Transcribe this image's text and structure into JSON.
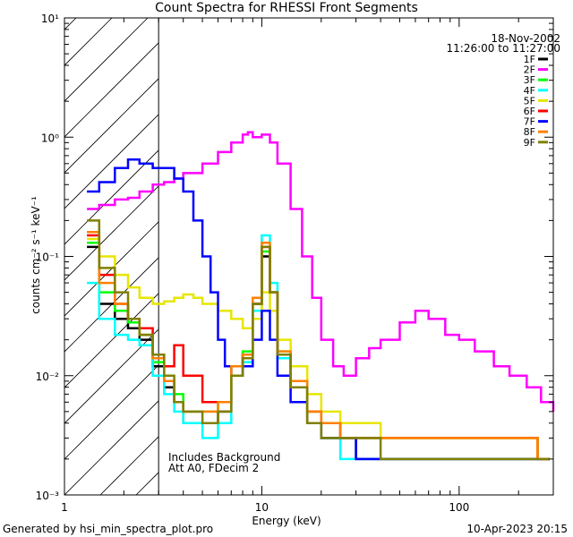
{
  "chart_data": {
    "type": "line",
    "title": "Count Spectra for RHESSI Front Segments",
    "xlabel": "Energy (keV)",
    "ylabel": "counts cm⁻² s⁻¹ keV⁻¹",
    "x_scale": "log",
    "y_scale": "log",
    "xlim": [
      1,
      300
    ],
    "ylim": [
      0.001,
      10
    ],
    "x_ticks": [
      "1",
      "10",
      "100"
    ],
    "y_ticks": [
      "10⁻³",
      "10⁻²",
      "10⁻¹",
      "10⁰",
      "10¹"
    ],
    "annotations": [
      "18-Nov-2002",
      "11:26:00 to 11:27:00",
      "Includes Background",
      "Att A0, FDecim 2"
    ],
    "excluded_region_kev": [
      1,
      3
    ],
    "legend_position": "top-right",
    "series": [
      {
        "name": "1F",
        "color": "#000000",
        "x": [
          1.3,
          1.5,
          1.8,
          2.1,
          2.4,
          2.8,
          3.2,
          3.6,
          4.0,
          5.0,
          6.0,
          7.0,
          8.0,
          9.0,
          10.0,
          11.0,
          12.0,
          14.0,
          17.0,
          20.0,
          25.0,
          30.0,
          40.0,
          60.0,
          100.0,
          150.0,
          250.0
        ],
        "y": [
          0.12,
          0.04,
          0.03,
          0.025,
          0.02,
          0.012,
          0.008,
          0.006,
          0.004,
          0.004,
          0.005,
          0.012,
          0.015,
          0.04,
          0.1,
          0.05,
          0.015,
          0.008,
          0.004,
          0.003,
          0.003,
          0.002,
          0.002,
          0.002,
          0.002,
          0.002,
          0.002
        ]
      },
      {
        "name": "2F",
        "color": "#ff00ff",
        "x": [
          1.3,
          1.5,
          1.8,
          2.1,
          2.4,
          2.8,
          3.2,
          3.6,
          4.0,
          5.0,
          6.0,
          7.0,
          8.0,
          8.5,
          9.0,
          10.0,
          11.0,
          12.0,
          14.0,
          16.0,
          18.0,
          20.0,
          23.0,
          26.0,
          30.0,
          35.0,
          40.0,
          50.0,
          60.0,
          70.0,
          85.0,
          100.0,
          120.0,
          150.0,
          180.0,
          220.0,
          260.0,
          300.0
        ],
        "y": [
          0.25,
          0.27,
          0.3,
          0.31,
          0.35,
          0.4,
          0.42,
          0.45,
          0.5,
          0.6,
          0.75,
          0.9,
          1.05,
          1.1,
          1.0,
          1.05,
          0.9,
          0.6,
          0.25,
          0.1,
          0.045,
          0.02,
          0.012,
          0.01,
          0.014,
          0.017,
          0.02,
          0.028,
          0.035,
          0.03,
          0.022,
          0.02,
          0.016,
          0.012,
          0.01,
          0.008,
          0.006,
          0.005
        ]
      },
      {
        "name": "3F",
        "color": "#00ff00",
        "x": [
          1.3,
          1.5,
          1.8,
          2.1,
          2.4,
          2.8,
          3.2,
          3.6,
          4.0,
          5.0,
          6.0,
          7.0,
          8.0,
          9.0,
          10.0,
          11.0,
          12.0,
          14.0,
          17.0,
          20.0,
          25.0,
          30.0,
          40.0,
          60.0,
          100.0,
          150.0,
          250.0
        ],
        "y": [
          0.13,
          0.05,
          0.035,
          0.028,
          0.022,
          0.013,
          0.009,
          0.007,
          0.005,
          0.005,
          0.006,
          0.012,
          0.016,
          0.04,
          0.11,
          0.05,
          0.016,
          0.009,
          0.005,
          0.004,
          0.003,
          0.003,
          0.003,
          0.003,
          0.003,
          0.003,
          0.002
        ]
      },
      {
        "name": "4F",
        "color": "#00ffff",
        "x": [
          1.3,
          1.5,
          1.8,
          2.1,
          2.4,
          2.8,
          3.2,
          3.6,
          4.0,
          5.0,
          6.0,
          7.0,
          8.0,
          9.0,
          10.0,
          11.0,
          12.0,
          14.0,
          17.0,
          20.0,
          25.0,
          30.0,
          40.0,
          60.0,
          100.0,
          150.0,
          250.0
        ],
        "y": [
          0.06,
          0.03,
          0.022,
          0.02,
          0.018,
          0.01,
          0.007,
          0.005,
          0.004,
          0.003,
          0.004,
          0.01,
          0.013,
          0.035,
          0.15,
          0.06,
          0.014,
          0.008,
          0.004,
          0.003,
          0.002,
          0.002,
          0.002,
          0.002,
          0.002,
          0.002,
          0.002
        ]
      },
      {
        "name": "5F",
        "color": "#e6e600",
        "x": [
          1.3,
          1.5,
          1.8,
          2.1,
          2.4,
          2.8,
          3.2,
          3.6,
          4.0,
          4.5,
          5.0,
          6.0,
          7.0,
          8.0,
          9.0,
          10.0,
          11.0,
          12.0,
          14.0,
          17.0,
          20.0,
          25.0,
          30.0,
          40.0,
          60.0,
          100.0,
          150.0,
          250.0
        ],
        "y": [
          0.14,
          0.1,
          0.07,
          0.055,
          0.045,
          0.04,
          0.042,
          0.045,
          0.048,
          0.045,
          0.04,
          0.035,
          0.03,
          0.025,
          0.03,
          0.05,
          0.035,
          0.02,
          0.012,
          0.007,
          0.005,
          0.004,
          0.004,
          0.003,
          0.003,
          0.003,
          0.003,
          0.002
        ]
      },
      {
        "name": "6F",
        "color": "#ff0000",
        "x": [
          1.3,
          1.5,
          1.8,
          2.1,
          2.4,
          2.8,
          3.2,
          3.6,
          4.0,
          5.0,
          6.0,
          7.0,
          8.0,
          9.0,
          10.0,
          11.0,
          12.0,
          14.0,
          17.0,
          20.0,
          25.0,
          30.0,
          40.0,
          60.0,
          100.0,
          150.0,
          250.0
        ],
        "y": [
          0.15,
          0.07,
          0.04,
          0.03,
          0.025,
          0.015,
          0.012,
          0.018,
          0.01,
          0.006,
          0.006,
          0.012,
          0.015,
          0.04,
          0.12,
          0.05,
          0.015,
          0.008,
          0.005,
          0.004,
          0.003,
          0.003,
          0.003,
          0.003,
          0.003,
          0.003,
          0.002
        ]
      },
      {
        "name": "7F",
        "color": "#0000ff",
        "x": [
          1.3,
          1.5,
          1.8,
          2.1,
          2.4,
          2.8,
          3.2,
          3.6,
          4.0,
          4.5,
          5.0,
          5.5,
          6.0,
          6.5,
          7.0,
          8.0,
          9.0,
          10.0,
          11.0,
          12.0,
          14.0,
          17.0,
          20.0,
          25.0,
          30.0,
          40.0,
          60.0,
          100.0,
          150.0,
          250.0
        ],
        "y": [
          0.35,
          0.42,
          0.55,
          0.65,
          0.6,
          0.55,
          0.55,
          0.45,
          0.35,
          0.2,
          0.1,
          0.05,
          0.02,
          0.012,
          0.01,
          0.012,
          0.02,
          0.035,
          0.02,
          0.01,
          0.006,
          0.004,
          0.003,
          0.003,
          0.002,
          0.002,
          0.002,
          0.002,
          0.002,
          0.002
        ]
      },
      {
        "name": "8F",
        "color": "#ff8000",
        "x": [
          1.3,
          1.5,
          1.8,
          2.1,
          2.4,
          2.8,
          3.2,
          3.6,
          4.0,
          5.0,
          6.0,
          7.0,
          8.0,
          9.0,
          10.0,
          11.0,
          12.0,
          14.0,
          17.0,
          20.0,
          25.0,
          30.0,
          40.0,
          60.0,
          100.0,
          150.0,
          250.0
        ],
        "y": [
          0.16,
          0.06,
          0.04,
          0.03,
          0.022,
          0.014,
          0.009,
          0.006,
          0.005,
          0.005,
          0.006,
          0.012,
          0.015,
          0.045,
          0.13,
          0.05,
          0.016,
          0.009,
          0.005,
          0.004,
          0.003,
          0.003,
          0.003,
          0.003,
          0.003,
          0.003,
          0.002
        ]
      },
      {
        "name": "9F",
        "color": "#808000",
        "x": [
          1.3,
          1.5,
          1.8,
          2.1,
          2.4,
          2.8,
          3.2,
          3.6,
          4.0,
          5.0,
          6.0,
          7.0,
          8.0,
          9.0,
          10.0,
          11.0,
          12.0,
          14.0,
          17.0,
          20.0,
          25.0,
          30.0,
          40.0,
          60.0,
          100.0,
          150.0,
          250.0
        ],
        "y": [
          0.2,
          0.08,
          0.05,
          0.03,
          0.022,
          0.015,
          0.01,
          0.006,
          0.005,
          0.004,
          0.005,
          0.01,
          0.014,
          0.04,
          0.12,
          0.05,
          0.015,
          0.008,
          0.004,
          0.003,
          0.003,
          0.003,
          0.002,
          0.002,
          0.002,
          0.002,
          0.002
        ]
      }
    ]
  },
  "footer": {
    "left": "Generated by hsi_min_spectra_plot.pro",
    "right": "10-Apr-2023 20:15"
  }
}
